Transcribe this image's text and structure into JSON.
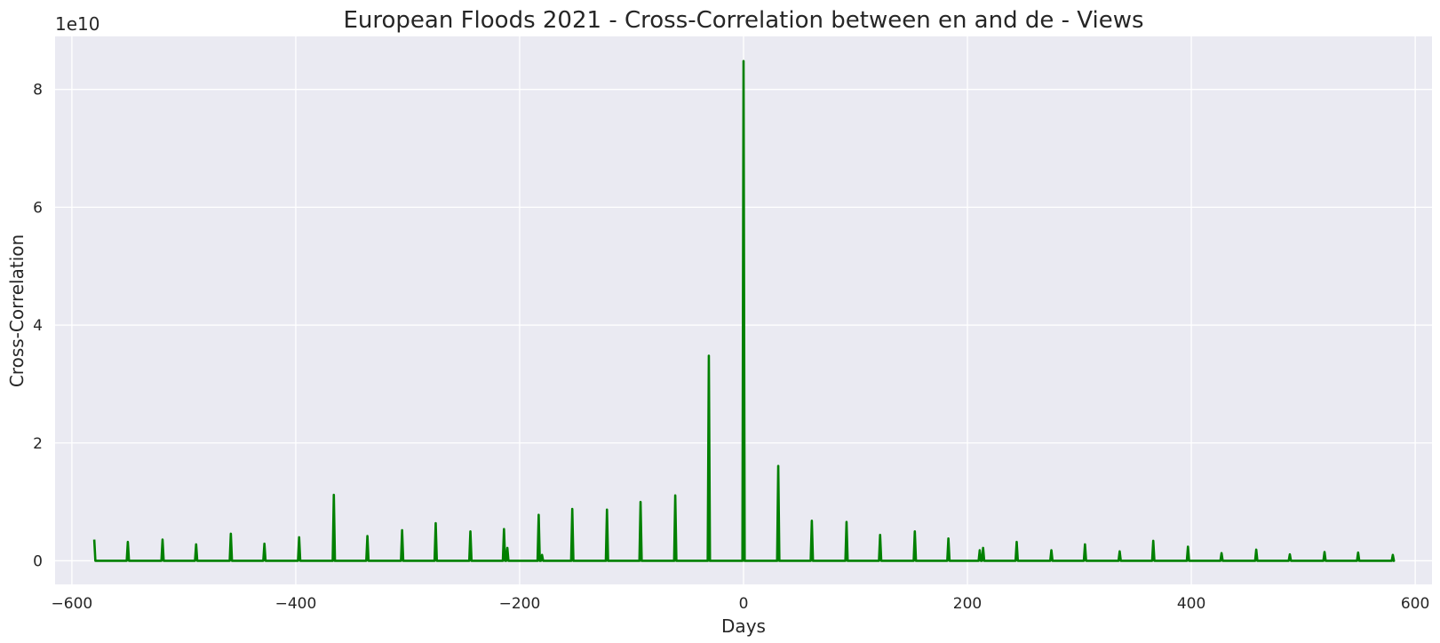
{
  "chart_data": {
    "type": "line",
    "title": "European Floods 2021 - Cross-Correlation between en and de - Views",
    "xlabel": "Days",
    "ylabel": "Cross-Correlation",
    "y_offset_label": "1e10",
    "xlim": [
      -615,
      615
    ],
    "ylim": [
      -0.4,
      8.9
    ],
    "x_ticks": [
      -600,
      -400,
      -200,
      0,
      200,
      400,
      600
    ],
    "x_tick_labels": [
      "−600",
      "−400",
      "−200",
      "0",
      "200",
      "400",
      "600"
    ],
    "y_ticks": [
      0,
      2,
      4,
      6,
      8
    ],
    "y_tick_labels": [
      "0",
      "2",
      "4",
      "6",
      "8"
    ],
    "grid": true,
    "background": "#eaeaf2",
    "series": [
      {
        "color": "#008000",
        "x_range": [
          -580,
          580
        ],
        "baseline": 0,
        "peaks": [
          [
            -580,
            0.36
          ],
          [
            -550,
            0.32
          ],
          [
            -519,
            0.36
          ],
          [
            -489,
            0.28
          ],
          [
            -458,
            0.46
          ],
          [
            -428,
            0.29
          ],
          [
            -397,
            0.4
          ],
          [
            -366,
            1.12
          ],
          [
            -336,
            0.42
          ],
          [
            -305,
            0.52
          ],
          [
            -275,
            0.64
          ],
          [
            -244,
            0.5
          ],
          [
            -214,
            0.54
          ],
          [
            -211,
            0.22
          ],
          [
            -183,
            0.78
          ],
          [
            -180,
            0.1
          ],
          [
            -153,
            0.88
          ],
          [
            -122,
            0.87
          ],
          [
            -92,
            1.0
          ],
          [
            -61,
            1.11
          ],
          [
            -31,
            3.48
          ],
          [
            0,
            8.48
          ],
          [
            31,
            1.61
          ],
          [
            61,
            0.68
          ],
          [
            92,
            0.66
          ],
          [
            122,
            0.44
          ],
          [
            153,
            0.5
          ],
          [
            183,
            0.38
          ],
          [
            211,
            0.18
          ],
          [
            214,
            0.22
          ],
          [
            244,
            0.32
          ],
          [
            275,
            0.18
          ],
          [
            305,
            0.28
          ],
          [
            336,
            0.16
          ],
          [
            366,
            0.34
          ],
          [
            397,
            0.24
          ],
          [
            427,
            0.13
          ],
          [
            458,
            0.19
          ],
          [
            488,
            0.11
          ],
          [
            519,
            0.15
          ],
          [
            549,
            0.14
          ],
          [
            580,
            0.1
          ]
        ]
      }
    ]
  }
}
